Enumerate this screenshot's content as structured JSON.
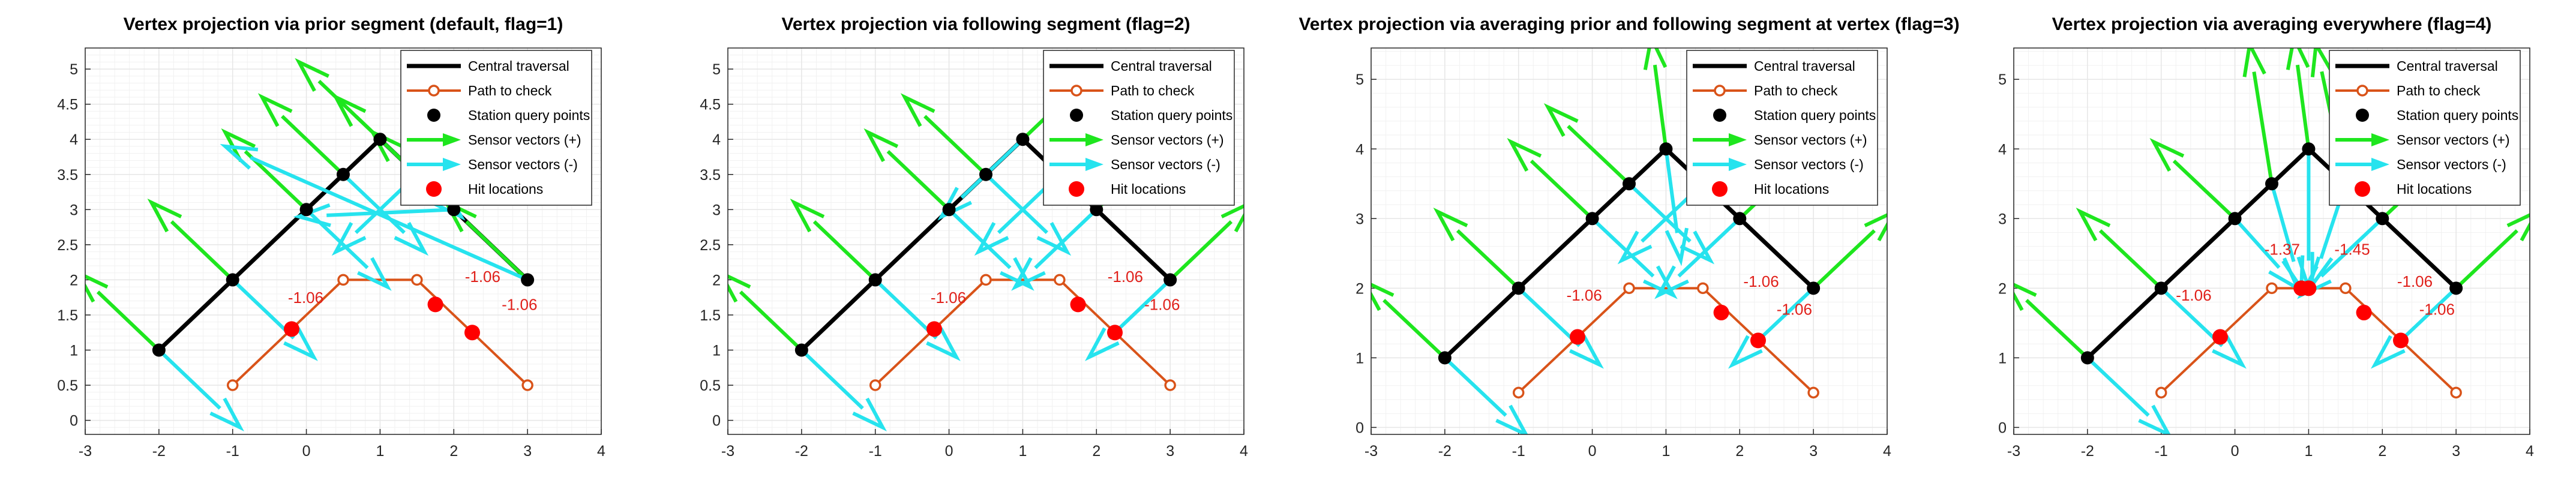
{
  "colors": {
    "traversal": "#000000",
    "path": "#d95319",
    "sensor_pos": "#1ee61e",
    "sensor_neg": "#26e3ee",
    "hit": "#ff0000",
    "hit_label": "#e0201a",
    "grid": "#e6e6e6",
    "axis": "#262626"
  },
  "chart_data": [
    {
      "type": "line",
      "title": "Vertex projection via prior segment (default, flag=1)",
      "xlim": [
        -3,
        4
      ],
      "ylim": [
        -0.2,
        5.3
      ],
      "xticks": [
        "-3",
        "-2",
        "-1",
        "0",
        "1",
        "2",
        "3",
        "4"
      ],
      "yticks": [
        "0",
        "0.5",
        "1",
        "1.5",
        "2",
        "2.5",
        "3",
        "3.5",
        "4",
        "4.5",
        "5"
      ],
      "grid": true,
      "legend_placement": "top-right",
      "legend": [
        "Central traversal",
        "Path to check",
        "Station query points",
        "Sensor vectors (+)",
        "Sensor vectors (-)",
        "Hit locations"
      ],
      "traversal": {
        "x": [
          -2,
          1,
          3
        ],
        "y": [
          1,
          4,
          2
        ]
      },
      "path_to_check": {
        "x": [
          -1,
          0.5,
          1.5,
          3
        ],
        "y": [
          0.5,
          2,
          2,
          0.5
        ]
      },
      "stations": {
        "x": [
          -2,
          -1,
          0,
          0.5,
          1,
          1.5,
          2,
          3
        ],
        "y": [
          1,
          2,
          3,
          3.5,
          4,
          3.5,
          3,
          2
        ]
      },
      "sensor_pos": [
        [
          -3.1,
          2.1
        ],
        [
          -2.1,
          3.1
        ],
        [
          -1.1,
          4.1
        ],
        [
          -0.6,
          4.6
        ],
        [
          -0.1,
          5.1
        ],
        [
          0.4,
          4.6
        ],
        [
          0.9,
          4.1
        ],
        [
          1.9,
          3.1
        ]
      ],
      "sensor_neg": [
        [
          -0.9,
          -0.1
        ],
        [
          0.1,
          0.9
        ],
        [
          1.1,
          1.9
        ],
        [
          1.6,
          2.4
        ],
        [
          2.1,
          2.9
        ],
        [
          0.4,
          2.4
        ],
        [
          -0.1,
          2.9
        ],
        [
          -1.1,
          3.9
        ]
      ],
      "hits": {
        "x": [
          -0.2,
          1.75,
          2.25
        ],
        "y": [
          1.3,
          1.65,
          1.25
        ]
      },
      "hit_labels": [
        {
          "text": "-1.06",
          "x": -0.25,
          "y": 1.67
        },
        {
          "text": "-1.06",
          "x": 2.15,
          "y": 1.97
        },
        {
          "text": "-1.06",
          "x": 2.65,
          "y": 1.57
        }
      ]
    },
    {
      "type": "line",
      "title": "Vertex projection via following segment (flag=2)",
      "xlim": [
        -3,
        4
      ],
      "ylim": [
        -0.2,
        5.3
      ],
      "xticks": [
        "-3",
        "-2",
        "-1",
        "0",
        "1",
        "2",
        "3",
        "4"
      ],
      "yticks": [
        "0",
        "0.5",
        "1",
        "1.5",
        "2",
        "2.5",
        "3",
        "3.5",
        "4",
        "4.5",
        "5"
      ],
      "grid": true,
      "legend_placement": "top-right",
      "legend": [
        "Central traversal",
        "Path to check",
        "Station query points",
        "Sensor vectors (+)",
        "Sensor vectors (-)",
        "Hit locations"
      ],
      "traversal": {
        "x": [
          -2,
          1,
          3
        ],
        "y": [
          1,
          4,
          2
        ]
      },
      "path_to_check": {
        "x": [
          -1,
          0.5,
          1.5,
          3
        ],
        "y": [
          0.5,
          2,
          2,
          0.5
        ]
      },
      "stations": {
        "x": [
          -2,
          -1,
          0,
          0.5,
          1,
          1.5,
          2,
          3
        ],
        "y": [
          1,
          2,
          3,
          3.5,
          4,
          3.5,
          3,
          2
        ]
      },
      "sensor_pos": [
        [
          -3.1,
          2.1
        ],
        [
          -2.1,
          3.1
        ],
        [
          -1.1,
          4.1
        ],
        [
          -0.6,
          4.6
        ],
        [
          2.1,
          5.1
        ],
        [
          2.6,
          4.6
        ],
        [
          3.1,
          4.1
        ],
        [
          4.1,
          3.1
        ]
      ],
      "sensor_neg": [
        [
          -0.9,
          -0.1
        ],
        [
          0.1,
          0.9
        ],
        [
          1.1,
          1.9
        ],
        [
          1.6,
          2.4
        ],
        [
          -0.1,
          2.9
        ],
        [
          0.4,
          2.4
        ],
        [
          0.9,
          1.9
        ],
        [
          1.9,
          0.9
        ]
      ],
      "hits": {
        "x": [
          -0.2,
          1.75,
          2.25
        ],
        "y": [
          1.3,
          1.65,
          1.25
        ]
      },
      "hit_labels": [
        {
          "text": "-1.06",
          "x": -0.25,
          "y": 1.67
        },
        {
          "text": "-1.06",
          "x": 2.15,
          "y": 1.97
        },
        {
          "text": "-1.06",
          "x": 2.65,
          "y": 1.57
        }
      ]
    },
    {
      "type": "line",
      "title": "Vertex projection via averaging prior and following segment at vertex (flag=3)",
      "xlim": [
        -3,
        4
      ],
      "ylim": [
        -0.1,
        5.45
      ],
      "xticks": [
        "-3",
        "-2",
        "-1",
        "0",
        "1",
        "2",
        "3",
        "4"
      ],
      "yticks": [
        "0",
        "1",
        "2",
        "3",
        "4",
        "5"
      ],
      "grid": true,
      "legend_placement": "top-right",
      "legend": [
        "Central traversal",
        "Path to check",
        "Station query points",
        "Sensor vectors (+)",
        "Sensor vectors (-)",
        "Hit locations"
      ],
      "traversal": {
        "x": [
          -2,
          1,
          3
        ],
        "y": [
          1,
          4,
          2
        ]
      },
      "path_to_check": {
        "x": [
          -1,
          0.5,
          1.5,
          3
        ],
        "y": [
          0.5,
          2,
          2,
          0.5
        ]
      },
      "stations": {
        "x": [
          -2,
          -1,
          0,
          0.5,
          1,
          1.5,
          2,
          3
        ],
        "y": [
          1,
          2,
          3,
          3.5,
          4,
          3.5,
          3,
          2
        ]
      },
      "sensor_pos": [
        [
          -3.1,
          2.1
        ],
        [
          -2.1,
          3.1
        ],
        [
          -1.1,
          4.1
        ],
        [
          -0.6,
          4.6
        ],
        [
          0.8,
          5.6
        ],
        [
          2.6,
          4.6
        ],
        [
          3.1,
          4.1
        ],
        [
          4.1,
          3.1
        ]
      ],
      "sensor_neg": [
        [
          -0.9,
          -0.1
        ],
        [
          0.1,
          0.9
        ],
        [
          1.1,
          1.9
        ],
        [
          1.6,
          2.4
        ],
        [
          1.2,
          2.4
        ],
        [
          0.4,
          2.4
        ],
        [
          0.9,
          1.9
        ],
        [
          1.9,
          0.9
        ]
      ],
      "hits": {
        "x": [
          -0.2,
          1.75,
          2.25
        ],
        "y": [
          1.3,
          1.65,
          1.25
        ]
      },
      "hit_labels": [
        {
          "text": "-1.06",
          "x": -0.35,
          "y": 1.82
        },
        {
          "text": "-1.06",
          "x": 2.05,
          "y": 2.02
        },
        {
          "text": "-1.06",
          "x": 2.5,
          "y": 1.62
        }
      ]
    },
    {
      "type": "line",
      "title": "Vertex projection via averaging everywhere (flag=4)",
      "xlim": [
        -3,
        4
      ],
      "ylim": [
        -0.1,
        5.45
      ],
      "xticks": [
        "-3",
        "-2",
        "-1",
        "0",
        "1",
        "2",
        "3",
        "4"
      ],
      "yticks": [
        "0",
        "1",
        "2",
        "3",
        "4",
        "5"
      ],
      "grid": true,
      "legend_placement": "top-right",
      "legend": [
        "Central traversal",
        "Path to check",
        "Station query points",
        "Sensor vectors (+)",
        "Sensor vectors (-)",
        "Hit locations"
      ],
      "traversal": {
        "x": [
          -2,
          1,
          3
        ],
        "y": [
          1,
          4,
          2
        ]
      },
      "path_to_check": {
        "x": [
          -1,
          0.5,
          1.5,
          3
        ],
        "y": [
          0.5,
          2,
          2,
          0.5
        ]
      },
      "stations": {
        "x": [
          -2,
          -1,
          0,
          0.5,
          1,
          1.5,
          2,
          3
        ],
        "y": [
          1,
          2,
          3,
          3.5,
          4,
          3.5,
          3,
          2
        ]
      },
      "sensor_pos": [
        [
          -3.1,
          2.1
        ],
        [
          -2.1,
          3.1
        ],
        [
          -1.1,
          4.1
        ],
        [
          0.2,
          5.5
        ],
        [
          0.8,
          5.6
        ],
        [
          1.1,
          5.5
        ],
        [
          3.1,
          4.1
        ],
        [
          4.1,
          3.1
        ]
      ],
      "sensor_neg": [
        [
          -0.9,
          -0.1
        ],
        [
          0.1,
          0.9
        ],
        [
          0.85,
          2.0
        ],
        [
          0.9,
          2.0
        ],
        [
          1.0,
          2.0
        ],
        [
          1.05,
          2.05
        ],
        [
          0.9,
          1.9
        ],
        [
          1.9,
          0.9
        ]
      ],
      "hits": {
        "x": [
          -0.2,
          0.9,
          1.0,
          1.75,
          2.25
        ],
        "y": [
          1.3,
          2.0,
          2.0,
          1.65,
          1.25
        ]
      },
      "hit_labels": [
        {
          "text": "-1.06",
          "x": -0.8,
          "y": 1.82
        },
        {
          "text": "-1.37",
          "x": 0.4,
          "y": 2.48
        },
        {
          "text": "-1.45",
          "x": 1.35,
          "y": 2.48
        },
        {
          "text": "-1.06",
          "x": 2.2,
          "y": 2.02
        },
        {
          "text": "-1.06",
          "x": 2.5,
          "y": 1.62
        }
      ]
    }
  ]
}
